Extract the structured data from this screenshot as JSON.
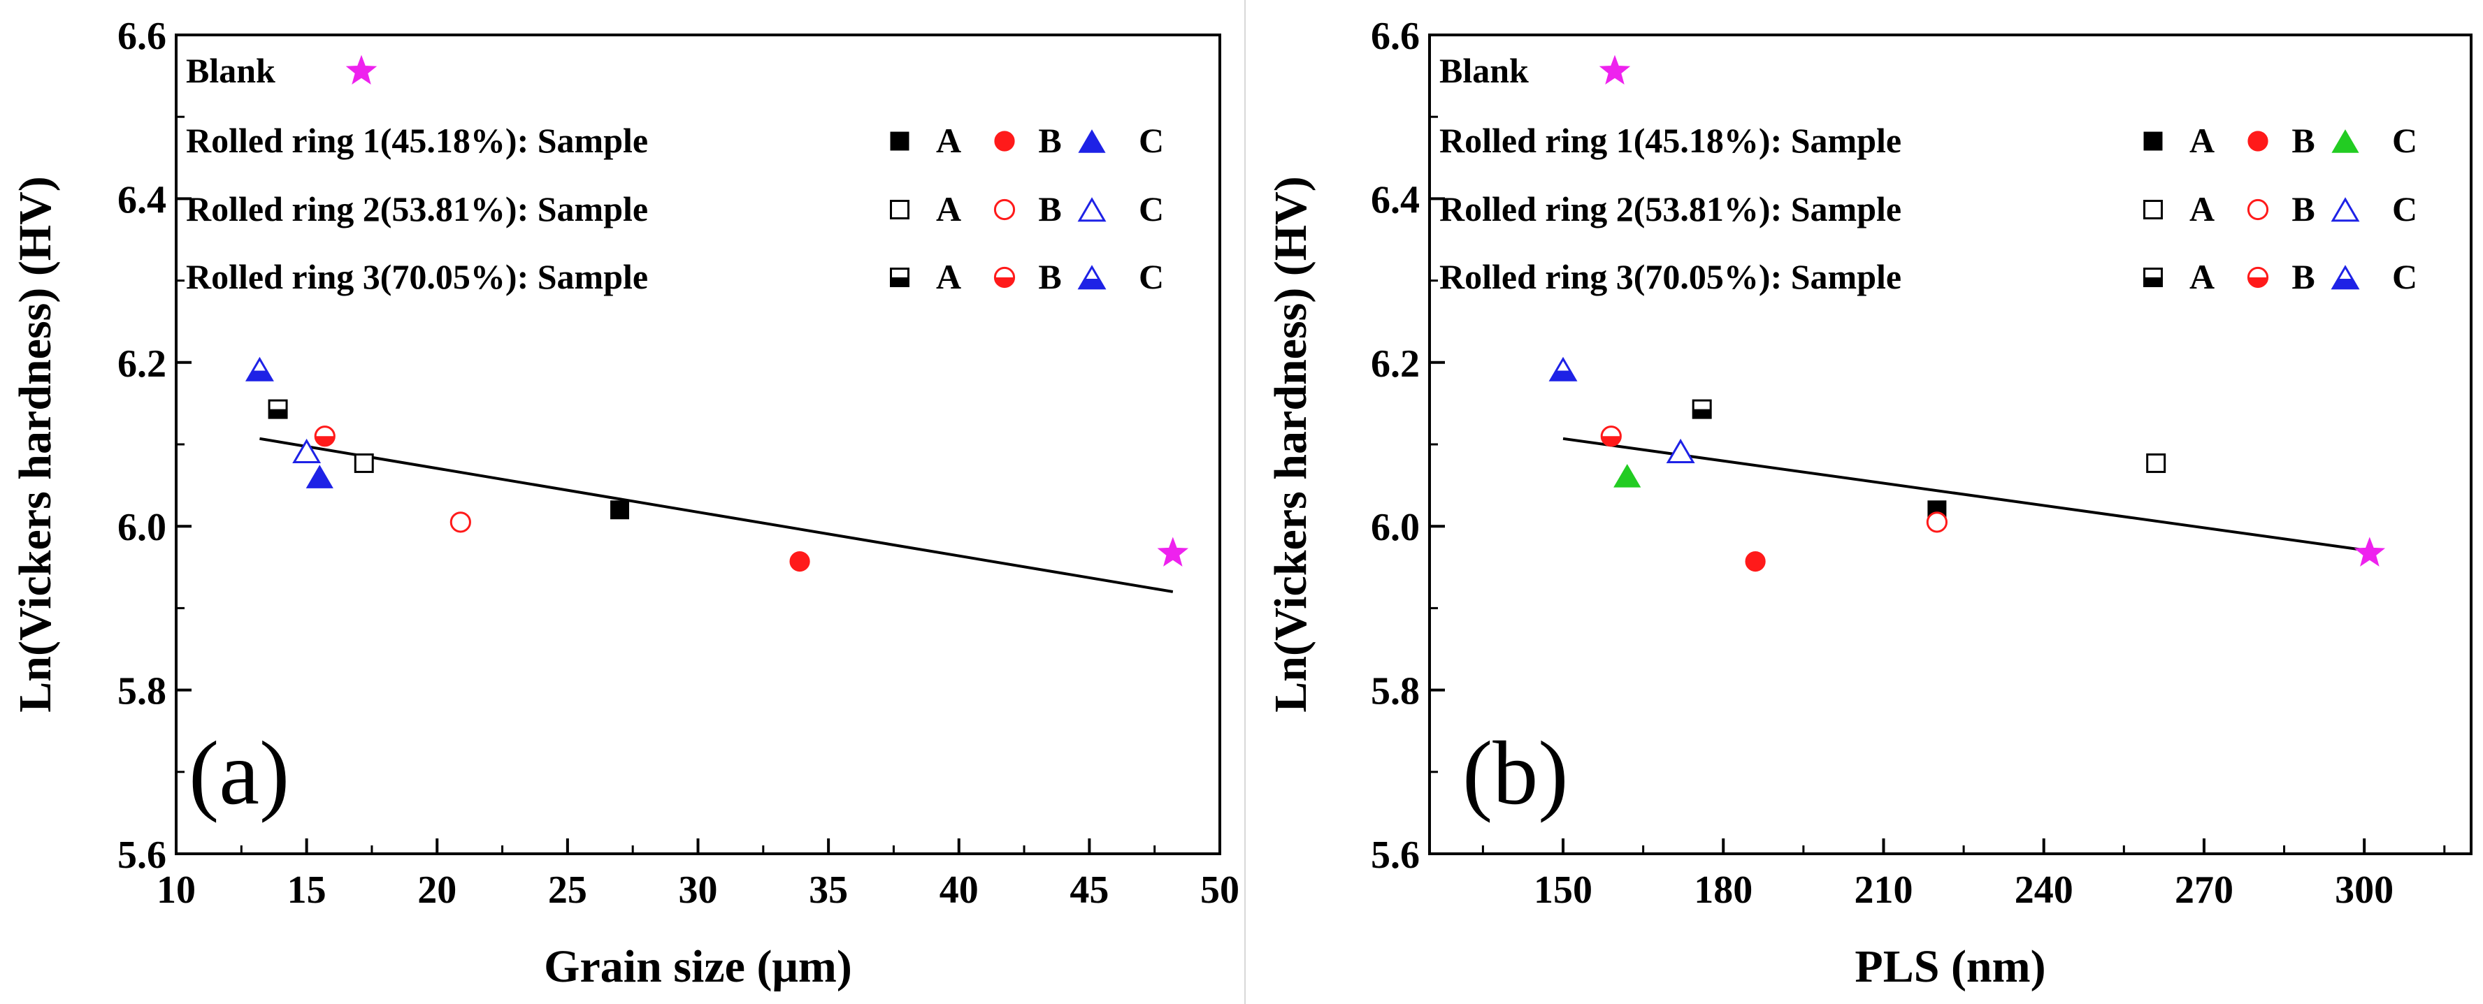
{
  "colors": {
    "black": "#000000",
    "red": "#ff1a1a",
    "blue": "#1e22e6",
    "green": "#22cc22",
    "magenta": "#ee22ee"
  },
  "legend": {
    "blank_label": "Blank",
    "rows": [
      {
        "label": "Rolled ring 1(45.18%): Sample",
        "style": "filled"
      },
      {
        "label": "Rolled ring 2(53.81%): Sample",
        "style": "open"
      },
      {
        "label": "Rolled ring 3(70.05%): Sample",
        "style": "half"
      }
    ],
    "sample_letters": [
      "A",
      "B",
      "C"
    ]
  },
  "chart_data": [
    {
      "type": "scatter",
      "panel_label": "(a)",
      "xlabel": "Grain size (μm)",
      "ylabel": "Ln(Vickers hardness) (HV)",
      "xlim": [
        10,
        50
      ],
      "ylim": [
        5.6,
        6.6
      ],
      "xticks": [
        "10",
        "15",
        "20",
        "25",
        "30",
        "35",
        "40",
        "45",
        "50"
      ],
      "xtick_values": [
        10,
        15,
        20,
        25,
        30,
        35,
        40,
        45,
        50
      ],
      "yticks": [
        "5.6",
        "5.8",
        "6.0",
        "6.2",
        "6.4",
        "6.6"
      ],
      "ytick_values": [
        5.6,
        5.8,
        6.0,
        6.2,
        6.4,
        6.6
      ],
      "c_color_ring1": "blue",
      "points": [
        {
          "series": "Blank",
          "marker": "star",
          "style": "filled",
          "color": "magenta",
          "x": 48.2,
          "y": 5.967
        },
        {
          "series": "Rolled ring 1 A",
          "marker": "square",
          "style": "filled",
          "color": "black",
          "x": 27.0,
          "y": 6.02
        },
        {
          "series": "Rolled ring 1 B",
          "marker": "circle",
          "style": "filled",
          "color": "red",
          "x": 33.9,
          "y": 5.957
        },
        {
          "series": "Rolled ring 1 C",
          "marker": "triangle",
          "style": "filled",
          "color": "blue",
          "x": 15.5,
          "y": 6.059
        },
        {
          "series": "Rolled ring 2 A",
          "marker": "square",
          "style": "open",
          "color": "black",
          "x": 17.2,
          "y": 6.077
        },
        {
          "series": "Rolled ring 2 B",
          "marker": "circle",
          "style": "open",
          "color": "red",
          "x": 20.9,
          "y": 6.005
        },
        {
          "series": "Rolled ring 2 C",
          "marker": "triangle",
          "style": "open",
          "color": "blue",
          "x": 15.0,
          "y": 6.09
        },
        {
          "series": "Rolled ring 3 A",
          "marker": "square",
          "style": "half",
          "color": "black",
          "x": 13.9,
          "y": 6.143
        },
        {
          "series": "Rolled ring 3 B",
          "marker": "circle",
          "style": "half",
          "color": "red",
          "x": 15.7,
          "y": 6.11
        },
        {
          "series": "Rolled ring 3 C",
          "marker": "triangle",
          "style": "half",
          "color": "blue",
          "x": 13.2,
          "y": 6.19
        }
      ],
      "fit_line": {
        "x": [
          13.2,
          48.2
        ],
        "y": [
          6.107,
          5.92
        ]
      }
    },
    {
      "type": "scatter",
      "panel_label": "(b)",
      "xlabel": "PLS (nm)",
      "ylabel": "Ln(Vickers hardness) (HV)",
      "xlim": [
        125,
        320
      ],
      "ylim": [
        5.6,
        6.6
      ],
      "xticks": [
        "150",
        "180",
        "210",
        "240",
        "270",
        "300"
      ],
      "xtick_values": [
        150,
        180,
        210,
        240,
        270,
        300
      ],
      "minor_xtick_values": [
        135,
        165,
        195,
        225,
        255,
        285,
        315
      ],
      "yticks": [
        "5.6",
        "5.8",
        "6.0",
        "6.2",
        "6.4",
        "6.6"
      ],
      "ytick_values": [
        5.6,
        5.8,
        6.0,
        6.2,
        6.4,
        6.6
      ],
      "c_color_ring1": "green",
      "points": [
        {
          "series": "Blank",
          "marker": "star",
          "style": "filled",
          "color": "magenta",
          "x": 301,
          "y": 5.967
        },
        {
          "series": "Rolled ring 1 A",
          "marker": "square",
          "style": "filled",
          "color": "black",
          "x": 220,
          "y": 6.02
        },
        {
          "series": "Rolled ring 1 B",
          "marker": "circle",
          "style": "filled",
          "color": "red",
          "x": 186,
          "y": 5.957
        },
        {
          "series": "Rolled ring 1 C",
          "marker": "triangle",
          "style": "filled",
          "color": "green",
          "x": 162,
          "y": 6.06
        },
        {
          "series": "Rolled ring 2 A",
          "marker": "square",
          "style": "open",
          "color": "black",
          "x": 261,
          "y": 6.077
        },
        {
          "series": "Rolled ring 2 B",
          "marker": "circle",
          "style": "open",
          "color": "red",
          "x": 220,
          "y": 6.005
        },
        {
          "series": "Rolled ring 2 C",
          "marker": "triangle",
          "style": "open",
          "color": "blue",
          "x": 172,
          "y": 6.09
        },
        {
          "series": "Rolled ring 3 A",
          "marker": "square",
          "style": "half",
          "color": "black",
          "x": 176,
          "y": 6.143
        },
        {
          "series": "Rolled ring 3 B",
          "marker": "circle",
          "style": "half",
          "color": "red",
          "x": 159,
          "y": 6.11
        },
        {
          "series": "Rolled ring 3 C",
          "marker": "triangle",
          "style": "half",
          "color": "blue",
          "x": 150,
          "y": 6.19
        }
      ],
      "fit_line": {
        "x": [
          150,
          301
        ],
        "y": [
          6.107,
          5.97
        ]
      }
    }
  ]
}
